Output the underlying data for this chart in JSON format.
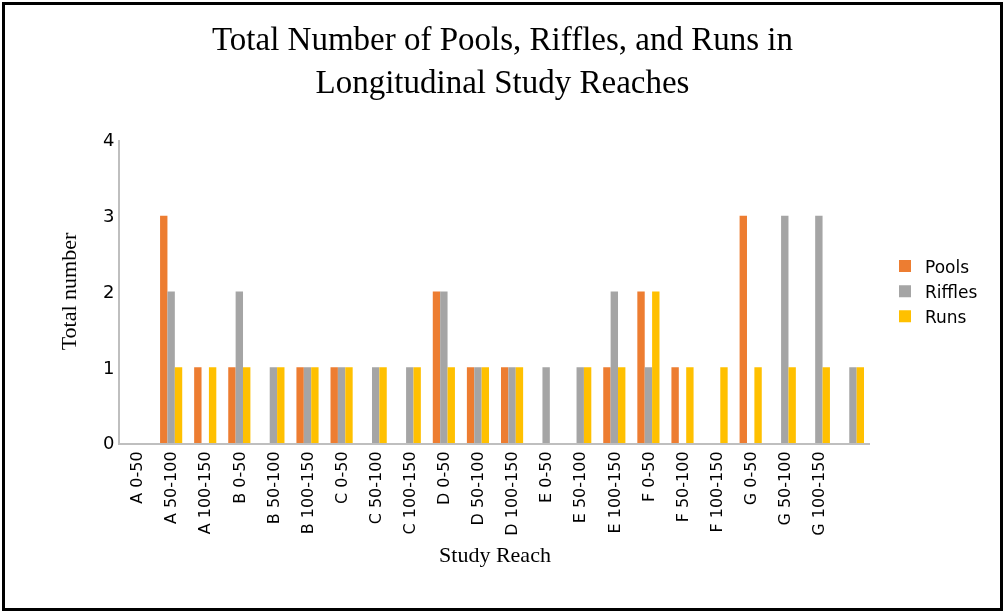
{
  "chart_data": {
    "type": "bar",
    "title": "Total Number of Pools, Riffles, and Runs in\nLongitudinal Study Reaches",
    "xlabel": "Study Reach",
    "ylabel": "Total number",
    "categories": [
      "A 0-50",
      "A 50-100",
      "A 100-150",
      "B 0-50",
      "B 50-100",
      "B 100-150",
      "C 0-50",
      "C 50-100",
      "C 100-150",
      "D 0-50",
      "D 50-100",
      "D 100-150",
      "E 0-50",
      "E 50-100",
      "E 100-150",
      "F 0-50",
      "F 50-100",
      "F 100-150",
      "G 0-50",
      "G 50-100",
      "G 100-150",
      null
    ],
    "series": [
      {
        "name": "Pools",
        "color": "#ed7d31",
        "values": [
          0,
          3,
          1,
          1,
          0,
          1,
          1,
          0,
          0,
          2,
          1,
          1,
          0,
          0,
          1,
          2,
          1,
          0,
          3,
          0,
          0,
          0
        ]
      },
      {
        "name": "Riffles",
        "color": "#a5a5a5",
        "values": [
          0,
          2,
          0,
          2,
          1,
          1,
          1,
          1,
          1,
          2,
          1,
          1,
          1,
          1,
          2,
          1,
          0,
          0,
          0,
          3,
          3,
          1
        ]
      },
      {
        "name": "Runs",
        "color": "#ffc000",
        "values": [
          0,
          1,
          1,
          1,
          1,
          1,
          1,
          1,
          1,
          1,
          1,
          1,
          0,
          1,
          1,
          2,
          1,
          1,
          1,
          1,
          1,
          1
        ]
      }
    ],
    "ylim": [
      0,
      4
    ],
    "yticks": [
      0,
      1,
      2,
      3,
      4
    ],
    "grid": false,
    "legend": "right"
  }
}
